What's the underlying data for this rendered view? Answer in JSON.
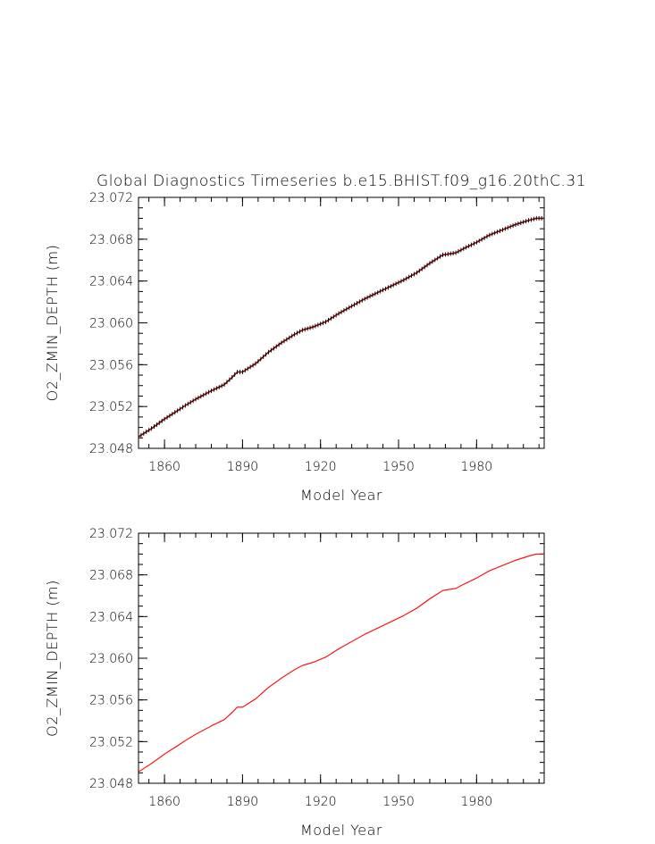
{
  "title": "Global Diagnostics Timeseries b.e15.BHIST.f09_g16.20thC.31",
  "chart_data": [
    {
      "type": "line",
      "xlabel": "Model Year",
      "ylabel": "O2_ZMIN_DEPTH (m)",
      "xlim": [
        1850,
        2006
      ],
      "ylim": [
        23.048,
        23.072
      ],
      "xticks": [
        "1860",
        "1890",
        "1920",
        "1950",
        "1980"
      ],
      "yticks": [
        "23.048",
        "23.052",
        "23.056",
        "23.060",
        "23.064",
        "23.068",
        "23.072"
      ],
      "series": [
        {
          "kind": "monthly",
          "line_color": "#8b0000",
          "marker_color": "#000000",
          "x": [
            1850,
            1855,
            1860,
            1865,
            1868,
            1872,
            1878,
            1883,
            1886,
            1888,
            1890,
            1895,
            1900,
            1905,
            1910,
            1913,
            1917,
            1922,
            1927,
            1932,
            1937,
            1942,
            1947,
            1952,
            1957,
            1962,
            1967,
            1972,
            1975,
            1980,
            1985,
            1988,
            1991,
            1995,
            2000,
            2003,
            2006
          ],
          "y": [
            23.0491,
            23.0499,
            23.0508,
            23.0516,
            23.0521,
            23.0527,
            23.0535,
            23.0541,
            23.0548,
            23.0553,
            23.0553,
            23.0561,
            23.0572,
            23.0581,
            23.0589,
            23.0593,
            23.0596,
            23.0601,
            23.0609,
            23.0616,
            23.0623,
            23.0629,
            23.0635,
            23.0641,
            23.0648,
            23.0657,
            23.0665,
            23.0667,
            23.0671,
            23.0677,
            23.0684,
            23.0687,
            23.069,
            23.0694,
            23.0698,
            23.07,
            23.07
          ]
        }
      ]
    },
    {
      "type": "line",
      "xlabel": "Model Year",
      "ylabel": "O2_ZMIN_DEPTH (m)",
      "xlim": [
        1850,
        2006
      ],
      "ylim": [
        23.048,
        23.072
      ],
      "xticks": [
        "1860",
        "1890",
        "1920",
        "1950",
        "1980"
      ],
      "yticks": [
        "23.048",
        "23.052",
        "23.056",
        "23.060",
        "23.064",
        "23.068",
        "23.072"
      ],
      "series": [
        {
          "kind": "annual",
          "line_color": "#ff0000",
          "x": [
            1850,
            1855,
            1860,
            1865,
            1868,
            1872,
            1878,
            1883,
            1886,
            1888,
            1890,
            1895,
            1900,
            1905,
            1910,
            1913,
            1917,
            1922,
            1927,
            1932,
            1937,
            1942,
            1947,
            1952,
            1957,
            1962,
            1967,
            1972,
            1975,
            1980,
            1985,
            1988,
            1991,
            1995,
            2000,
            2003,
            2006
          ],
          "y": [
            23.0491,
            23.0499,
            23.0508,
            23.0516,
            23.0521,
            23.0527,
            23.0535,
            23.0541,
            23.0548,
            23.0553,
            23.0553,
            23.0561,
            23.0572,
            23.0581,
            23.0589,
            23.0593,
            23.0596,
            23.0601,
            23.0609,
            23.0616,
            23.0623,
            23.0629,
            23.0635,
            23.0641,
            23.0648,
            23.0657,
            23.0665,
            23.0667,
            23.0671,
            23.0677,
            23.0684,
            23.0687,
            23.069,
            23.0694,
            23.0698,
            23.07,
            23.07
          ]
        }
      ]
    }
  ]
}
